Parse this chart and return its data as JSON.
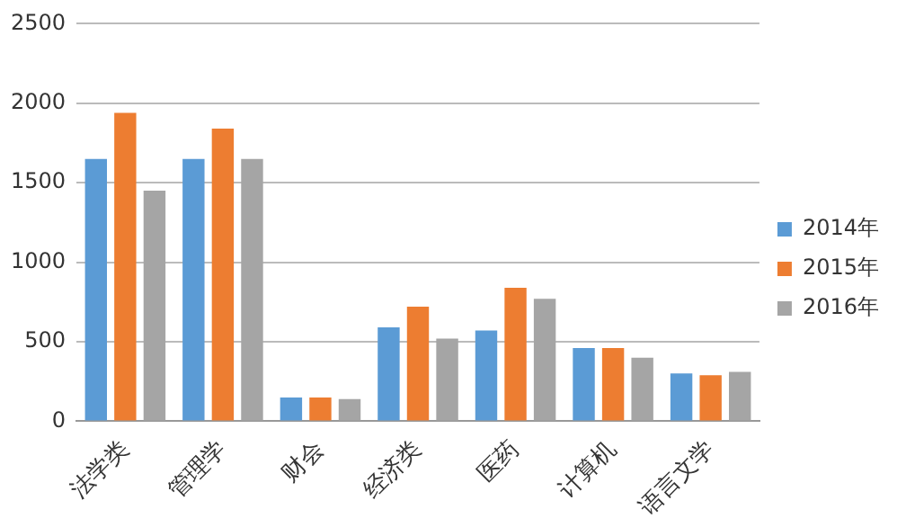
{
  "chart_data": {
    "type": "bar",
    "categories": [
      "法学类",
      "管理学",
      "财会",
      "经济类",
      "医药",
      "计算机",
      "语言文学"
    ],
    "series": [
      {
        "name": "2014年",
        "color": "#5b9bd5",
        "values": [
          1650,
          1650,
          150,
          590,
          570,
          460,
          300
        ]
      },
      {
        "name": "2015年",
        "color": "#ed7d31",
        "values": [
          1940,
          1840,
          150,
          720,
          840,
          460,
          290
        ]
      },
      {
        "name": "2016年",
        "color": "#a5a5a5",
        "values": [
          1450,
          1650,
          140,
          520,
          770,
          400,
          310
        ]
      }
    ],
    "ylim": [
      0,
      2500
    ],
    "yticks": [
      0,
      500,
      1000,
      1500,
      2000,
      2500
    ],
    "grid": "y",
    "legend": "right"
  }
}
